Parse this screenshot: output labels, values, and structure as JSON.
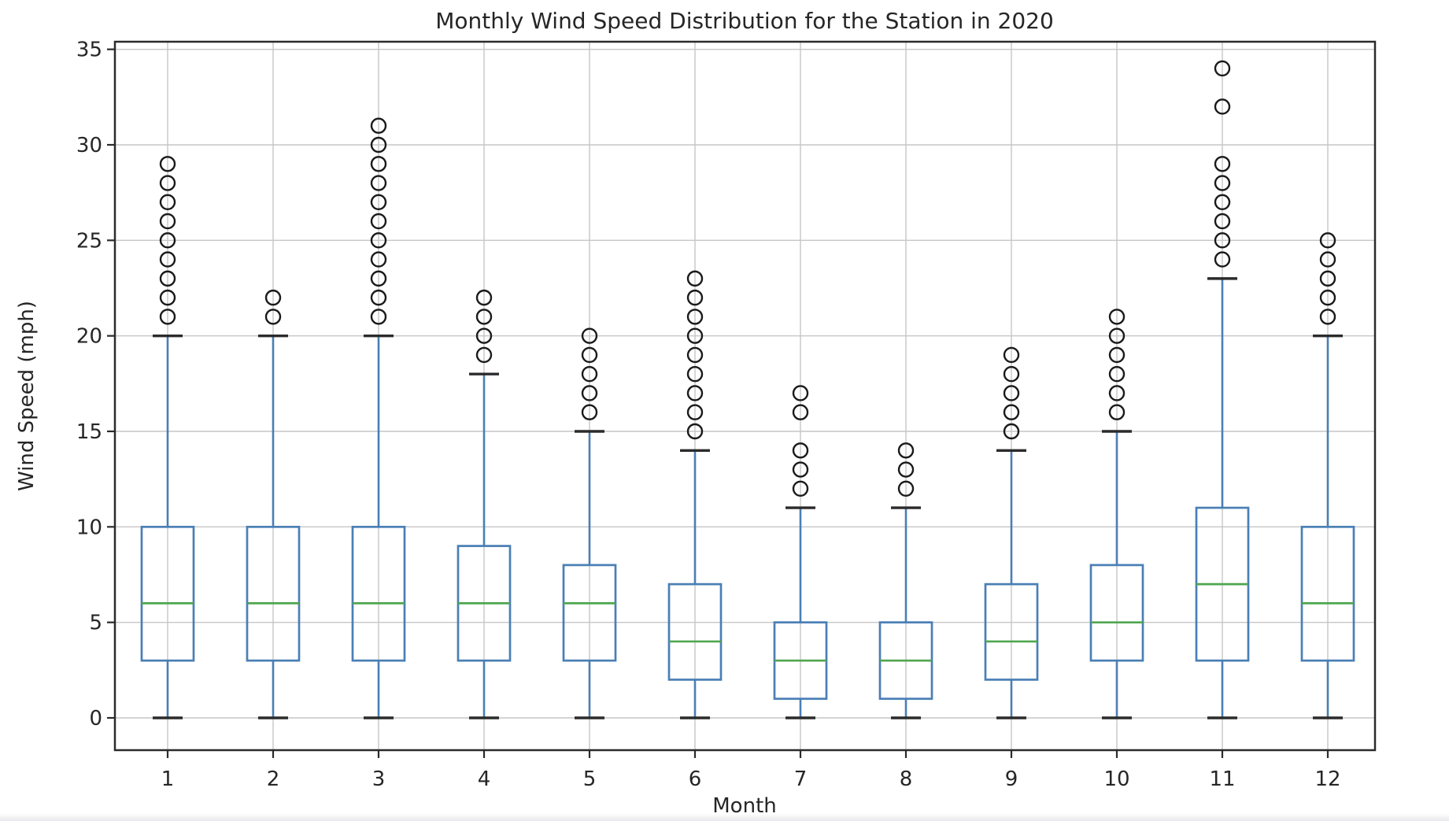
{
  "chart_data": {
    "type": "boxplot",
    "title": "Monthly Wind Speed Distribution for the Station in 2020",
    "xlabel": "Month",
    "ylabel": "Wind Speed (mph)",
    "yticks": [
      0,
      5,
      10,
      15,
      20,
      25,
      30,
      35
    ],
    "xticks": [
      1,
      2,
      3,
      4,
      5,
      6,
      7,
      8,
      9,
      10,
      11,
      12
    ],
    "ylim": [
      -1.7,
      35.4
    ],
    "grid": true,
    "legend": "none",
    "series": [
      {
        "month": 1,
        "whislo": 0,
        "q1": 3,
        "median": 6,
        "q3": 10,
        "whishi": 20,
        "outliers": [
          21,
          22,
          23,
          24,
          25,
          26,
          27,
          28,
          29
        ]
      },
      {
        "month": 2,
        "whislo": 0,
        "q1": 3,
        "median": 6,
        "q3": 10,
        "whishi": 20,
        "outliers": [
          21,
          22
        ]
      },
      {
        "month": 3,
        "whislo": 0,
        "q1": 3,
        "median": 6,
        "q3": 10,
        "whishi": 20,
        "outliers": [
          21,
          22,
          23,
          24,
          25,
          26,
          27,
          28,
          29,
          30,
          31
        ]
      },
      {
        "month": 4,
        "whislo": 0,
        "q1": 3,
        "median": 6,
        "q3": 9,
        "whishi": 18,
        "outliers": [
          19,
          20,
          21,
          22
        ]
      },
      {
        "month": 5,
        "whislo": 0,
        "q1": 3,
        "median": 6,
        "q3": 8,
        "whishi": 15,
        "outliers": [
          16,
          17,
          18,
          19,
          20
        ]
      },
      {
        "month": 6,
        "whislo": 0,
        "q1": 2,
        "median": 4,
        "q3": 7,
        "whishi": 14,
        "outliers": [
          15,
          16,
          17,
          18,
          19,
          20,
          21,
          22,
          23
        ]
      },
      {
        "month": 7,
        "whislo": 0,
        "q1": 1,
        "median": 3,
        "q3": 5,
        "whishi": 11,
        "outliers": [
          12,
          13,
          14,
          16,
          17
        ]
      },
      {
        "month": 8,
        "whislo": 0,
        "q1": 1,
        "median": 3,
        "q3": 5,
        "whishi": 11,
        "outliers": [
          12,
          13,
          14
        ]
      },
      {
        "month": 9,
        "whislo": 0,
        "q1": 2,
        "median": 4,
        "q3": 7,
        "whishi": 14,
        "outliers": [
          15,
          16,
          17,
          18,
          19
        ]
      },
      {
        "month": 10,
        "whislo": 0,
        "q1": 3,
        "median": 5,
        "q3": 8,
        "whishi": 15,
        "outliers": [
          16,
          17,
          18,
          19,
          20,
          21
        ]
      },
      {
        "month": 11,
        "whislo": 0,
        "q1": 3,
        "median": 7,
        "q3": 11,
        "whishi": 23,
        "outliers": [
          24,
          25,
          26,
          27,
          28,
          29,
          32,
          34
        ]
      },
      {
        "month": 12,
        "whislo": 0,
        "q1": 3,
        "median": 6,
        "q3": 10,
        "whishi": 20,
        "outliers": [
          21,
          22,
          23,
          24,
          25
        ]
      }
    ],
    "colors": {
      "box": "#4a7fb5",
      "whisker": "#4a7fb5",
      "median": "#4fa64f",
      "cap": "#2b2b2b",
      "flier": "#1a1a1a",
      "grid": "#c6c6c6",
      "axis": "#2b2b2b",
      "text": "#262626",
      "background": "#ffffff"
    }
  }
}
